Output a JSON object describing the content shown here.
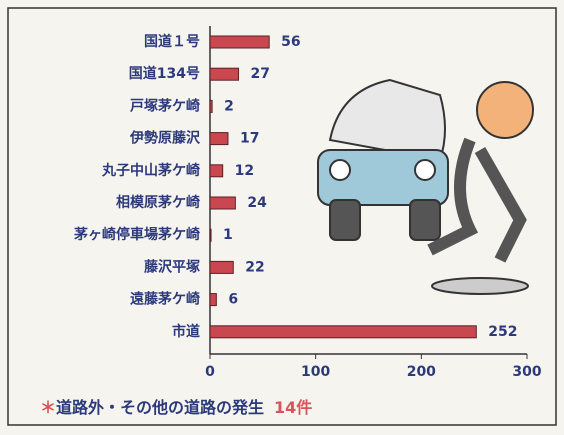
{
  "chart_data": {
    "type": "bar",
    "orientation": "horizontal",
    "categories": [
      "国道１号",
      "国道134号",
      "戸塚茅ケ崎",
      "伊勢原藤沢",
      "丸子中山茅ケ崎",
      "相模原茅ケ崎",
      "茅ヶ崎停車場茅ケ崎",
      "藤沢平塚",
      "遠藤茅ケ崎",
      "市道"
    ],
    "values": [
      56,
      27,
      2,
      17,
      12,
      24,
      1,
      22,
      6,
      252
    ],
    "color": "#c9474f",
    "xlim": [
      0,
      300
    ],
    "xticks": [
      0,
      100,
      200,
      300
    ],
    "annotation": [
      "＊",
      "道路外・その他の道路の発生",
      "14件"
    ]
  }
}
